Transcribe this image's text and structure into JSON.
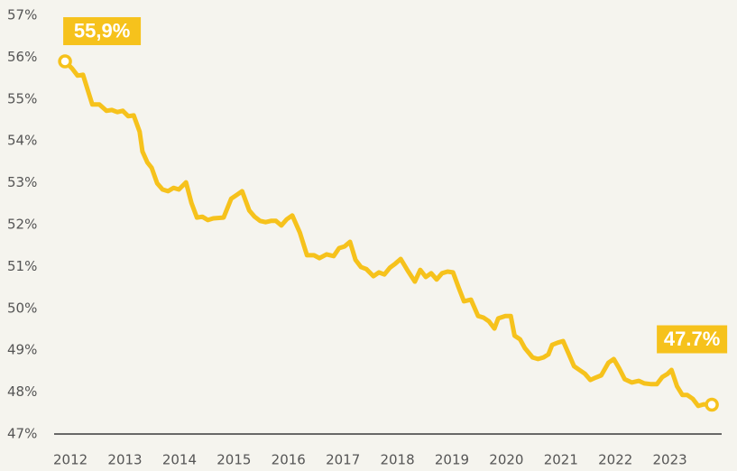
{
  "chart_data": {
    "type": "line",
    "color": "#f6c21c",
    "x": [
      2011.9,
      2012.03,
      2012.13,
      2012.23,
      2012.31,
      2012.4,
      2012.53,
      2012.66,
      2012.76,
      2012.86,
      2012.96,
      2013.06,
      2013.16,
      2013.27,
      2013.32,
      2013.41,
      2013.49,
      2013.59,
      2013.69,
      2013.79,
      2013.89,
      2013.99,
      2014.12,
      2014.22,
      2014.32,
      2014.42,
      2014.52,
      2014.62,
      2014.81,
      2014.95,
      2015.05,
      2015.15,
      2015.28,
      2015.38,
      2015.48,
      2015.58,
      2015.68,
      2015.77,
      2015.87,
      2015.97,
      2016.07,
      2016.21,
      2016.34,
      2016.47,
      2016.57,
      2016.7,
      2016.83,
      2016.93,
      2017.03,
      2017.13,
      2017.23,
      2017.33,
      2017.43,
      2017.56,
      2017.66,
      2017.76,
      2017.86,
      2017.96,
      2018.06,
      2018.19,
      2018.32,
      2018.42,
      2018.52,
      2018.62,
      2018.72,
      2018.82,
      2018.92,
      2019.02,
      2019.12,
      2019.22,
      2019.35,
      2019.48,
      2019.58,
      2019.68,
      2019.78,
      2019.85,
      2019.98,
      2020.08,
      2020.15,
      2020.25,
      2020.34,
      2020.48,
      2020.58,
      2020.68,
      2020.77,
      2020.84,
      2020.94,
      2021.04,
      2021.14,
      2021.24,
      2021.34,
      2021.44,
      2021.54,
      2021.64,
      2021.74,
      2021.87,
      2021.97,
      2022.07,
      2022.17,
      2022.3,
      2022.43,
      2022.53,
      2022.66,
      2022.76,
      2022.86,
      2022.96,
      2023.03,
      2023.13,
      2023.23,
      2023.32,
      2023.42,
      2023.52,
      2023.62,
      2023.77
    ],
    "values": [
      55.9,
      55.73,
      55.56,
      55.58,
      55.25,
      54.87,
      54.87,
      54.72,
      54.74,
      54.69,
      54.72,
      54.59,
      54.61,
      54.22,
      53.75,
      53.49,
      53.36,
      52.99,
      52.84,
      52.8,
      52.88,
      52.84,
      53.01,
      52.52,
      52.17,
      52.19,
      52.11,
      52.15,
      52.17,
      52.62,
      52.71,
      52.8,
      52.34,
      52.19,
      52.09,
      52.06,
      52.09,
      52.09,
      51.98,
      52.13,
      52.22,
      51.81,
      51.27,
      51.27,
      51.2,
      51.29,
      51.25,
      51.44,
      51.48,
      51.59,
      51.16,
      50.99,
      50.94,
      50.77,
      50.86,
      50.81,
      50.97,
      51.07,
      51.18,
      50.9,
      50.64,
      50.92,
      50.75,
      50.84,
      50.69,
      50.84,
      50.88,
      50.86,
      50.51,
      50.17,
      50.21,
      49.82,
      49.78,
      49.69,
      49.52,
      49.76,
      49.82,
      49.82,
      49.35,
      49.26,
      49.05,
      48.83,
      48.79,
      48.83,
      48.9,
      49.13,
      49.18,
      49.22,
      48.92,
      48.62,
      48.53,
      48.44,
      48.29,
      48.35,
      48.4,
      48.7,
      48.79,
      48.57,
      48.31,
      48.23,
      48.27,
      48.21,
      48.19,
      48.19,
      48.36,
      48.44,
      48.53,
      48.14,
      47.93,
      47.93,
      47.84,
      47.67,
      47.71,
      47.7
    ],
    "annotations": [
      "55,9%",
      "47.7%"
    ],
    "xlim": [
      2011.7,
      2023.95
    ],
    "xticks": [
      2012,
      2013,
      2014,
      2015,
      2016,
      2017,
      2018,
      2019,
      2020,
      2021,
      2022,
      2023
    ],
    "ylim": [
      47,
      57
    ],
    "yticks": [
      {
        "value": 47,
        "label": "47%"
      },
      {
        "value": 48,
        "label": "48%"
      },
      {
        "value": 49,
        "label": "49%"
      },
      {
        "value": 50,
        "label": "50%"
      },
      {
        "value": 51,
        "label": "51%"
      },
      {
        "value": 52,
        "label": "52%"
      },
      {
        "value": 53,
        "label": "53%"
      },
      {
        "value": 54,
        "label": "54%"
      },
      {
        "value": 55,
        "label": "55%"
      },
      {
        "value": 56,
        "label": "56%"
      },
      {
        "value": 57,
        "label": "57%"
      }
    ]
  }
}
